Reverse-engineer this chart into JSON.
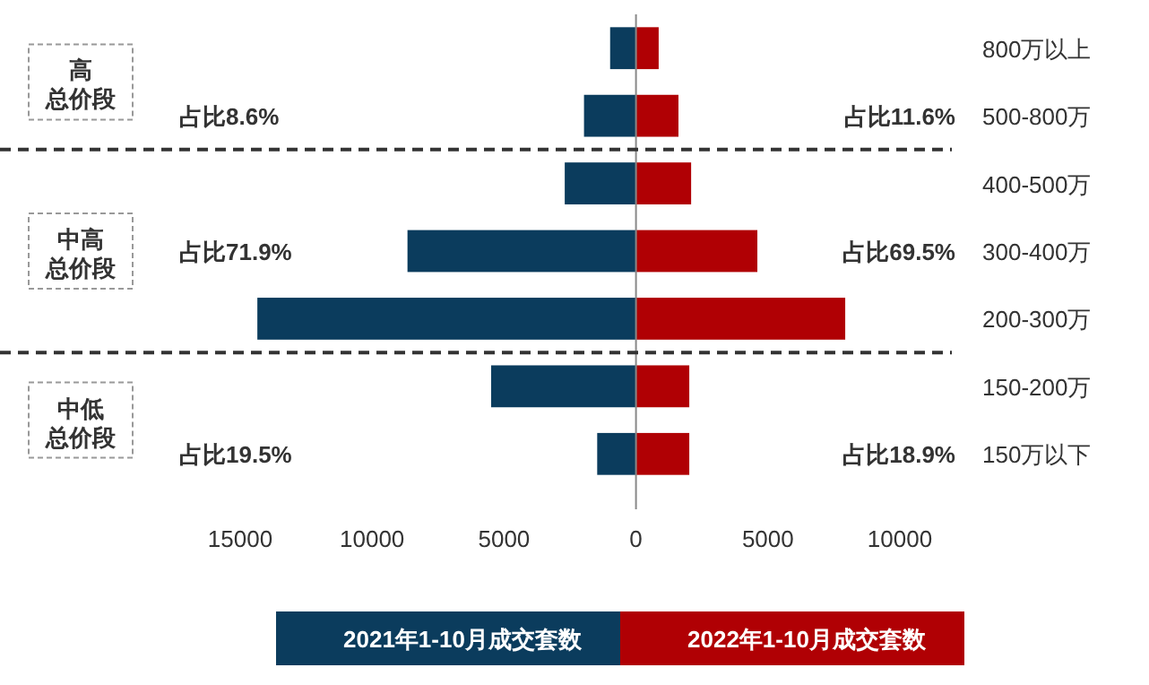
{
  "chart_data": {
    "type": "bar",
    "orientation": "horizontal",
    "categories": [
      "800万以上",
      "500-800万",
      "400-500万",
      "300-400万",
      "200-300万",
      "150-200万",
      "150万以下"
    ],
    "series": [
      {
        "name": "2021年1-10月成交套数",
        "color": "#0b3c5d",
        "values": [
          -980,
          -1970,
          -2700,
          -8660,
          -14350,
          -5490,
          -1470
        ]
      },
      {
        "name": "2022年1-10月成交套数",
        "color": "#b00004",
        "values": [
          860,
          1610,
          2090,
          4600,
          7930,
          2020,
          2020
        ]
      }
    ],
    "xlim": [
      -15000,
      10000
    ],
    "stacked": true,
    "xticks": [
      {
        "value": -15000,
        "label": "15000"
      },
      {
        "value": -10000,
        "label": "10000"
      },
      {
        "value": -5000,
        "label": "5000"
      },
      0,
      5000,
      10000
    ],
    "annotations": [
      "高",
      "总价段",
      "中高",
      "总价段",
      "中低",
      "总价段",
      "占比8.6%",
      "占比11.6%",
      "占比71.9%",
      "占比69.5%",
      "占比19.5%",
      "占比18.9%"
    ],
    "legend": "bottom",
    "grid": false
  }
}
